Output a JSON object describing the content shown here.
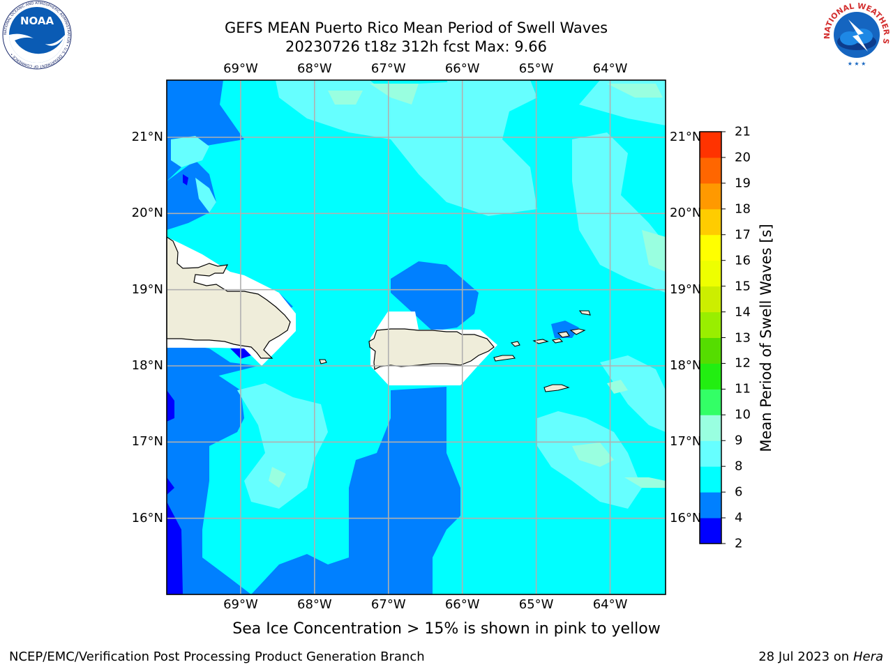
{
  "title": {
    "line1": "GEFS MEAN Puerto Rico Mean Period of Swell Waves",
    "line2": "20230726 t18z 312h fcst   Max: 9.66"
  },
  "map": {
    "lon_labels": [
      "69°W",
      "68°W",
      "67°W",
      "66°W",
      "65°W",
      "64°W"
    ],
    "lat_labels": [
      "21°N",
      "20°N",
      "19°N",
      "18°N",
      "17°N",
      "16°N"
    ],
    "lon_values": [
      -69,
      -68,
      -67,
      -66,
      -65,
      -64
    ],
    "lat_values": [
      21,
      20,
      19,
      18,
      17,
      16
    ],
    "extent": {
      "lon_min": -70.0,
      "lon_max": -63.25,
      "lat_min": 15.0,
      "lat_max": 21.75
    },
    "colors": {
      "land": "#efedda",
      "grid": "#b0b0b0",
      "no_data": "#ffffff"
    }
  },
  "colorbar": {
    "title": "Mean Period of Swell Waves [s]",
    "levels": [
      2,
      4,
      6,
      8,
      9,
      10,
      11,
      12,
      13,
      14,
      15,
      16,
      17,
      18,
      19,
      20,
      21
    ],
    "labels": [
      "2",
      "4",
      "6",
      "8",
      "9",
      "10",
      "11",
      "12",
      "13",
      "14",
      "15",
      "16",
      "17",
      "18",
      "19",
      "20",
      "21"
    ],
    "colors": [
      "#0000ff",
      "#0080ff",
      "#00ffff",
      "#66ffff",
      "#99ffe0",
      "#33ff66",
      "#22ee11",
      "#55dd00",
      "#99ee00",
      "#ccee00",
      "#eeff00",
      "#ffff00",
      "#ffcc00",
      "#ff9900",
      "#ff6600",
      "#ff3300",
      "#ff0000"
    ]
  },
  "caption": "Sea Ice Concentration > 15% is shown in pink to yellow",
  "footer": {
    "left": "NCEP/EMC/Verification Post Processing Product Generation Branch",
    "right_date": "28 Jul 2023 on ",
    "right_host": "Hera"
  },
  "logos": {
    "noaa_text": "NOAA",
    "noaa_ring": "NATIONAL OCEANIC AND ATMOSPHERIC ADMINISTRATION • U.S. DEPARTMENT OF COMMERCE •",
    "nws_ring": "NATIONAL WEATHER SERVICE"
  }
}
